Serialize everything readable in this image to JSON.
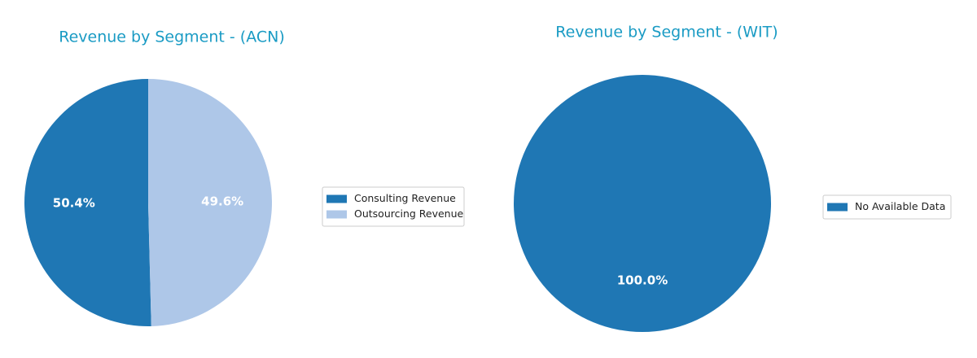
{
  "chart_data": [
    {
      "type": "pie",
      "title": "Revenue by Segment - (ACN)",
      "categories": [
        "Consulting Revenue",
        "Outsourcing Revenue"
      ],
      "values": [
        50.4,
        49.6
      ],
      "value_labels": [
        "50.4%",
        "49.6%"
      ],
      "colors": [
        "#1f77b4",
        "#aec7e8"
      ],
      "legend": "right"
    },
    {
      "type": "pie",
      "title": "Revenue by Segment - (WIT)",
      "categories": [
        "No Available Data"
      ],
      "values": [
        100.0
      ],
      "value_labels": [
        "100.0%"
      ],
      "colors": [
        "#1f77b4"
      ],
      "legend": "right"
    }
  ]
}
